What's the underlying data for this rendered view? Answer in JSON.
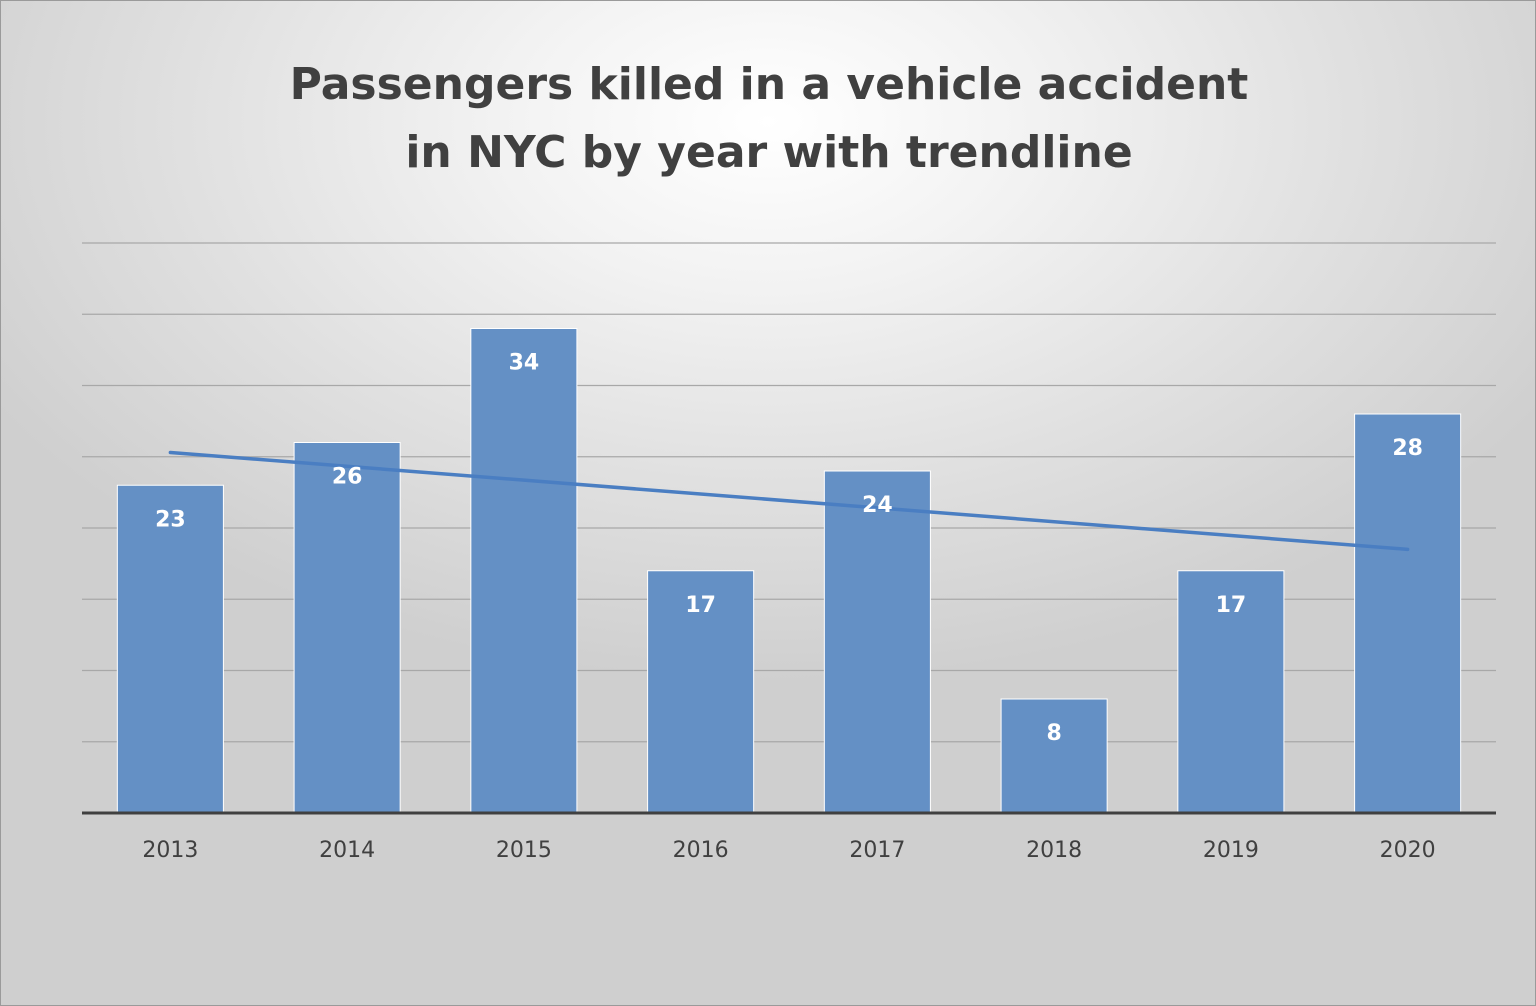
{
  "chart_data": {
    "type": "bar",
    "title_lines": [
      "Passengers killed in a vehicle accident",
      "in NYC by year with trendline"
    ],
    "categories": [
      "2013",
      "2014",
      "2015",
      "2016",
      "2017",
      "2018",
      "2019",
      "2020"
    ],
    "values": [
      23,
      26,
      34,
      17,
      24,
      8,
      17,
      28
    ],
    "data_labels": [
      "23",
      "26",
      "34",
      "17",
      "24",
      "8",
      "17",
      "28"
    ],
    "xlabel": "",
    "ylabel": "",
    "ylim": [
      0,
      40
    ],
    "y_gridline_step": 5,
    "grid": true,
    "y_axis_labels_visible": false,
    "legend": "none",
    "trendline": {
      "type": "linear",
      "start": 25.3,
      "end": 18.5
    },
    "colors": {
      "bar": "#6490c5",
      "trendline": "#4a7ec2",
      "gridline": "#a8a8a8",
      "axis": "#404040",
      "data_label": "#ffffff",
      "tick_label": "#404040"
    }
  }
}
